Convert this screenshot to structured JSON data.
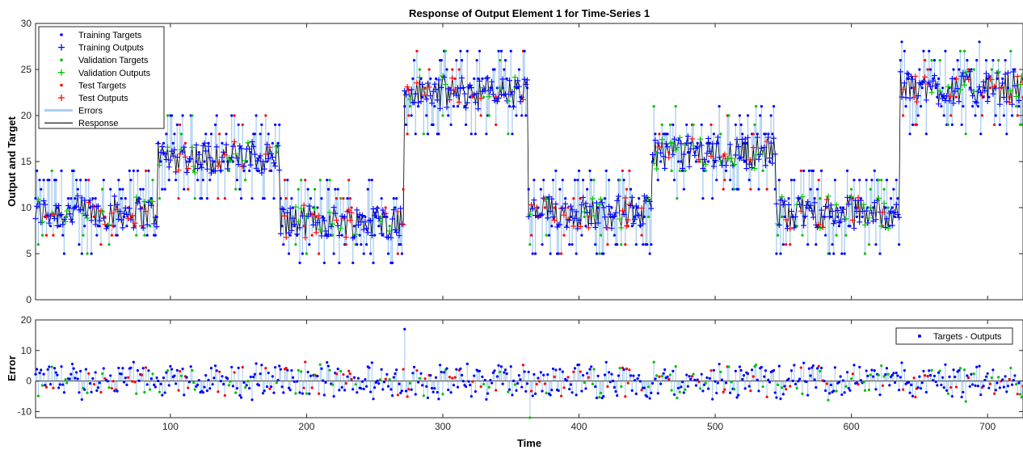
{
  "chart_data": [
    {
      "type": "line",
      "title": "Response of Output Element 1 for Time-Series 1",
      "xlabel": "",
      "ylabel": "Output and Target",
      "xlim": [
        1,
        726
      ],
      "ylim": [
        0,
        30
      ],
      "xticks": [
        100,
        200,
        300,
        400,
        500,
        600,
        700
      ],
      "yticks": [
        0,
        5,
        10,
        15,
        20,
        25,
        30
      ],
      "legend_position": "top-left",
      "grid": false,
      "segments": [
        {
          "x_start": 1,
          "x_end": 90,
          "level": 9.5
        },
        {
          "x_start": 91,
          "x_end": 180,
          "level": 15.5
        },
        {
          "x_start": 181,
          "x_end": 271,
          "level": 8.5
        },
        {
          "x_start": 272,
          "x_end": 362,
          "level": 22.5
        },
        {
          "x_start": 363,
          "x_end": 453,
          "level": 9.5
        },
        {
          "x_start": 454,
          "x_end": 544,
          "level": 16
        },
        {
          "x_start": 545,
          "x_end": 635,
          "level": 9.5
        },
        {
          "x_start": 636,
          "x_end": 726,
          "level": 23
        }
      ],
      "noise_amplitude_targets": 5,
      "noise_amplitude_outputs": 1.8,
      "split_fractions": {
        "training": 0.7,
        "validation": 0.15,
        "test": 0.15
      },
      "series": [
        {
          "name": "Training Targets",
          "color": "#0000ff",
          "marker": "dot"
        },
        {
          "name": "Training Outputs",
          "color": "#0000ff",
          "marker": "plus"
        },
        {
          "name": "Validation Targets",
          "color": "#00c000",
          "marker": "dot"
        },
        {
          "name": "Validation Outputs",
          "color": "#00c000",
          "marker": "plus"
        },
        {
          "name": "Test Targets",
          "color": "#ff0000",
          "marker": "dot"
        },
        {
          "name": "Test Outputs",
          "color": "#ff0000",
          "marker": "plus"
        },
        {
          "name": "Errors",
          "color": "#a9cdf0",
          "marker": "line"
        },
        {
          "name": "Response",
          "color": "#000000",
          "marker": "line"
        }
      ]
    },
    {
      "type": "scatter",
      "title": "",
      "xlabel": "Time",
      "ylabel": "Error",
      "xlim": [
        1,
        726
      ],
      "ylim": [
        -12,
        20
      ],
      "xticks": [
        100,
        200,
        300,
        400,
        500,
        600,
        700
      ],
      "yticks": [
        -10,
        0,
        10,
        20
      ],
      "legend_position": "top-right",
      "grid": false,
      "outliers": [
        {
          "x": 272,
          "y": 17
        },
        {
          "x": 364,
          "y": -12
        }
      ],
      "series": [
        {
          "name": "Targets - Outputs",
          "color": "#0000ff",
          "marker": "dot"
        }
      ]
    }
  ]
}
